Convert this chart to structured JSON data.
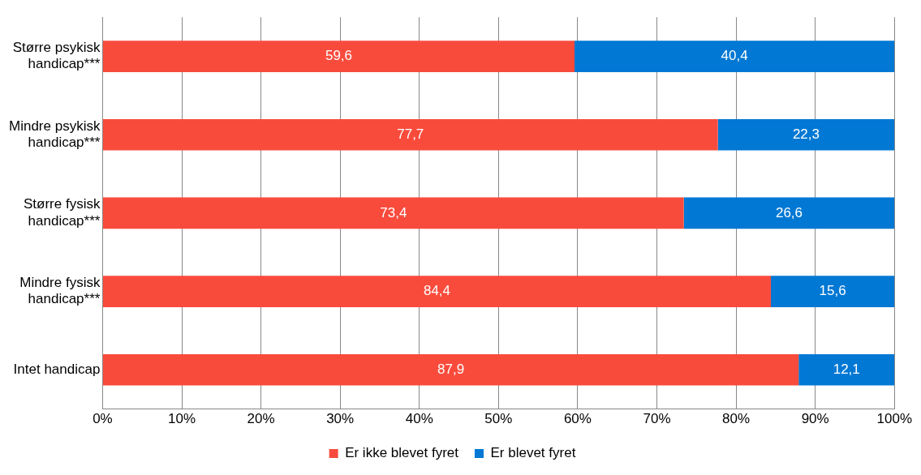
{
  "chart_data": {
    "type": "bar",
    "orientation": "horizontal",
    "stacked": true,
    "categories": [
      "Større psykisk handicap***",
      "Mindre psykisk handicap***",
      "Større fysisk handicap***",
      "Mindre fysisk handicap***",
      "Intet handicap"
    ],
    "series": [
      {
        "name": "Er ikke blevet fyret",
        "color": "#f94b3c",
        "values": [
          59.6,
          77.7,
          73.4,
          84.4,
          87.9
        ],
        "value_labels": [
          "59,6",
          "77,7",
          "73,4",
          "84,4",
          "87,9"
        ]
      },
      {
        "name": "Er blevet fyret",
        "color": "#0078d4",
        "values": [
          40.4,
          22.3,
          26.6,
          15.6,
          12.1
        ],
        "value_labels": [
          "40,4",
          "22,3",
          "26,6",
          "15,6",
          "12,1"
        ]
      }
    ],
    "xlim": [
      0,
      100
    ],
    "xticks": [
      {
        "value": 0,
        "label": "0%"
      },
      {
        "value": 10,
        "label": "10%"
      },
      {
        "value": 20,
        "label": "20%"
      },
      {
        "value": 30,
        "label": "30%"
      },
      {
        "value": 40,
        "label": "40%"
      },
      {
        "value": 50,
        "label": "50%"
      },
      {
        "value": 60,
        "label": "60%"
      },
      {
        "value": 70,
        "label": "70%"
      },
      {
        "value": 80,
        "label": "80%"
      },
      {
        "value": 90,
        "label": "90%"
      },
      {
        "value": 100,
        "label": "100%"
      }
    ],
    "grid": "x",
    "legend": "bottom"
  }
}
